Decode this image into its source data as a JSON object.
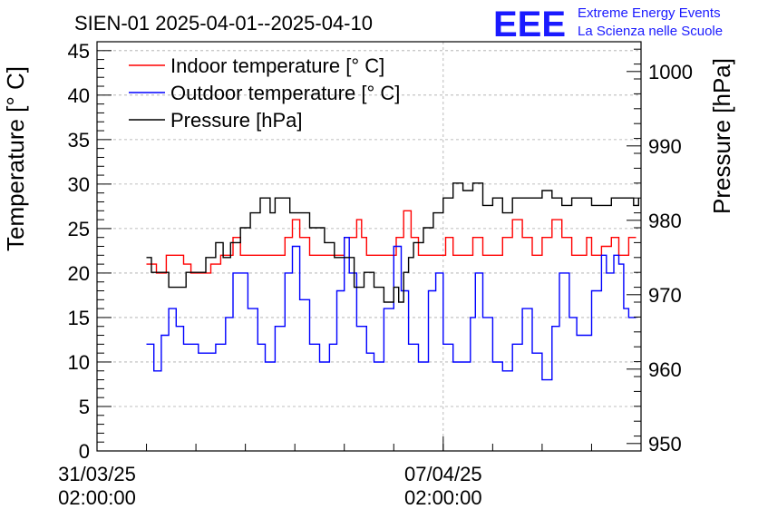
{
  "chart_data": {
    "type": "line",
    "title": "SIEN-01 2025-04-01--2025-04-10",
    "logo": {
      "mark": "EEE",
      "line1": "Extreme Energy Events",
      "line2": "La Scienza nelle Scuole",
      "color": "#1a1aff"
    },
    "ylabel_left": "Temperature [° C]",
    "ylabel_right": "Pressure [hPa]",
    "y_left_range": [
      0,
      46
    ],
    "y_left_ticks": [
      0,
      5,
      10,
      15,
      20,
      25,
      30,
      35,
      40,
      45
    ],
    "y_right_range": [
      949,
      1004
    ],
    "y_right_ticks": [
      950,
      960,
      970,
      980,
      990,
      1000
    ],
    "x_range": [
      0,
      11
    ],
    "x_tick_labels": [
      {
        "day": 0,
        "line1": "31/03/25",
        "line2": "02:00:00"
      },
      {
        "day": 7,
        "line1": "07/04/25",
        "line2": "02:00:00"
      }
    ],
    "legend": [
      {
        "label": "Indoor temperature [° C]",
        "color": "#ff0000"
      },
      {
        "label": "Outdoor temperature [° C]",
        "color": "#0000ff"
      },
      {
        "label": "Pressure [hPa]",
        "color": "#000000"
      }
    ],
    "series": [
      {
        "name": "Indoor temperature [° C]",
        "axis": "left",
        "color": "#ff0000",
        "x": [
          1.0,
          1.2,
          1.4,
          1.6,
          1.75,
          1.9,
          2.1,
          2.3,
          2.5,
          2.75,
          2.9,
          3.0,
          3.15,
          3.3,
          3.6,
          3.8,
          3.95,
          4.1,
          4.3,
          4.6,
          4.8,
          5.0,
          5.25,
          5.35,
          5.45,
          5.6,
          5.8,
          6.05,
          6.2,
          6.35,
          6.5,
          6.75,
          6.95,
          7.05,
          7.2,
          7.4,
          7.6,
          7.8,
          8.0,
          8.2,
          8.4,
          8.6,
          8.8,
          9.0,
          9.2,
          9.4,
          9.6,
          9.8,
          9.9,
          10.0,
          10.2,
          10.4,
          10.55,
          10.75,
          10.9
        ],
        "values": [
          21,
          20,
          22,
          22,
          21,
          20,
          20,
          21,
          22,
          24,
          22,
          22,
          22,
          22,
          22,
          24,
          26,
          24,
          22,
          22,
          22,
          24,
          26,
          24,
          22,
          22,
          22,
          24,
          27,
          24,
          22,
          22,
          22,
          24,
          22,
          22,
          24,
          22,
          22,
          24,
          26,
          24,
          22,
          24,
          26,
          24,
          22,
          22,
          24,
          22,
          23,
          24,
          22,
          24,
          24
        ]
      },
      {
        "name": "Outdoor temperature [° C]",
        "axis": "left",
        "color": "#0000ff",
        "x": [
          1.0,
          1.15,
          1.3,
          1.45,
          1.6,
          1.75,
          1.9,
          2.05,
          2.25,
          2.4,
          2.6,
          2.75,
          2.9,
          3.05,
          3.25,
          3.4,
          3.6,
          3.8,
          3.95,
          4.1,
          4.3,
          4.5,
          4.7,
          4.85,
          5.0,
          5.1,
          5.25,
          5.45,
          5.6,
          5.8,
          6.0,
          6.15,
          6.3,
          6.5,
          6.7,
          6.85,
          7.0,
          7.2,
          7.4,
          7.55,
          7.65,
          7.8,
          8.0,
          8.2,
          8.4,
          8.6,
          8.8,
          9.0,
          9.2,
          9.35,
          9.55,
          9.7,
          9.85,
          10.0,
          10.2,
          10.3,
          10.45,
          10.55,
          10.65,
          10.75,
          10.9
        ],
        "values": [
          12,
          9,
          13,
          16,
          14,
          12,
          12,
          11,
          11,
          12,
          15,
          20,
          20,
          16,
          12,
          10,
          14,
          20,
          23,
          17,
          12,
          10,
          12,
          18,
          24,
          20,
          14,
          11,
          10,
          16,
          23,
          18,
          12,
          10,
          18,
          20,
          12,
          10,
          10,
          15,
          20,
          15,
          10,
          9,
          12,
          16,
          11,
          8,
          14,
          20,
          15,
          13,
          13,
          18,
          22,
          20,
          22,
          21,
          16,
          15,
          15
        ]
      },
      {
        "name": "Pressure [hPa]",
        "axis": "right",
        "color": "#000000",
        "x": [
          1.0,
          1.1,
          1.25,
          1.45,
          1.6,
          1.8,
          2.0,
          2.2,
          2.4,
          2.55,
          2.7,
          2.9,
          3.1,
          3.3,
          3.5,
          3.6,
          3.75,
          3.9,
          4.1,
          4.3,
          4.6,
          4.8,
          5.0,
          5.2,
          5.4,
          5.6,
          5.8,
          5.9,
          6.0,
          6.1,
          6.2,
          6.3,
          6.4,
          6.6,
          6.8,
          7.0,
          7.2,
          7.4,
          7.6,
          7.8,
          8.0,
          8.2,
          8.4,
          8.6,
          8.8,
          9.0,
          9.2,
          9.4,
          9.6,
          9.8,
          10.0,
          10.2,
          10.4,
          10.6,
          10.75,
          10.85,
          10.95
        ],
        "values": [
          975,
          973,
          973,
          971,
          971,
          973,
          973,
          975,
          977,
          975,
          977,
          979,
          981,
          983,
          981,
          983,
          983,
          981,
          981,
          979,
          977,
          975,
          975,
          971,
          973,
          971,
          969,
          969,
          971,
          969,
          973,
          975,
          977,
          979,
          981,
          983,
          985,
          984,
          985,
          982,
          983,
          981,
          983,
          983,
          983,
          984,
          983,
          982,
          983,
          983,
          982,
          982,
          983,
          983,
          983,
          982,
          983
        ]
      }
    ]
  }
}
